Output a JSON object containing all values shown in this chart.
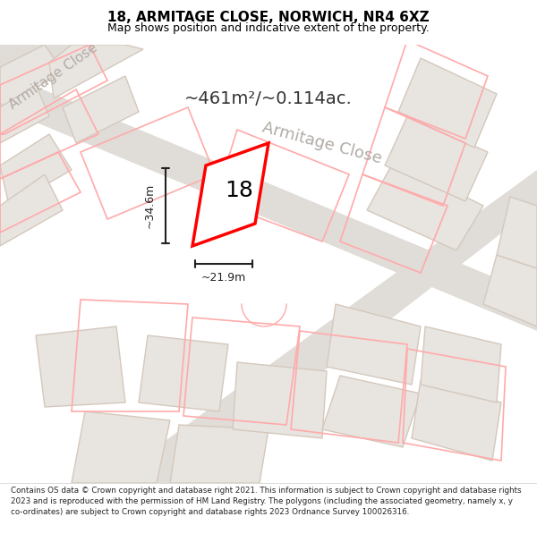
{
  "title": "18, ARMITAGE CLOSE, NORWICH, NR4 6XZ",
  "subtitle": "Map shows position and indicative extent of the property.",
  "area_text": "~461m²/~0.114ac.",
  "dim_width": "~21.9m",
  "dim_height": "~34.6m",
  "number_label": "18",
  "footer": "Contains OS data © Crown copyright and database right 2021. This information is subject to Crown copyright and database rights 2023 and is reproduced with the permission of HM Land Registry. The polygons (including the associated geometry, namely x, y co-ordinates) are subject to Crown copyright and database rights 2023 Ordnance Survey 100026316.",
  "bg_color": "#f0eeeb",
  "map_bg": "#f7f6f4",
  "road_color": "#e8e4df",
  "building_fill": "#e8e4e0",
  "building_edge": "#d4c8bc",
  "highlight_fill": "#ffffff",
  "highlight_edge": "#ff0000",
  "pink_edge": "#ffaaaa",
  "road_label_color": "#aaaaaa",
  "dim_color": "#222222",
  "area_color": "#333333",
  "footer_color": "#222222",
  "title_color": "#000000"
}
